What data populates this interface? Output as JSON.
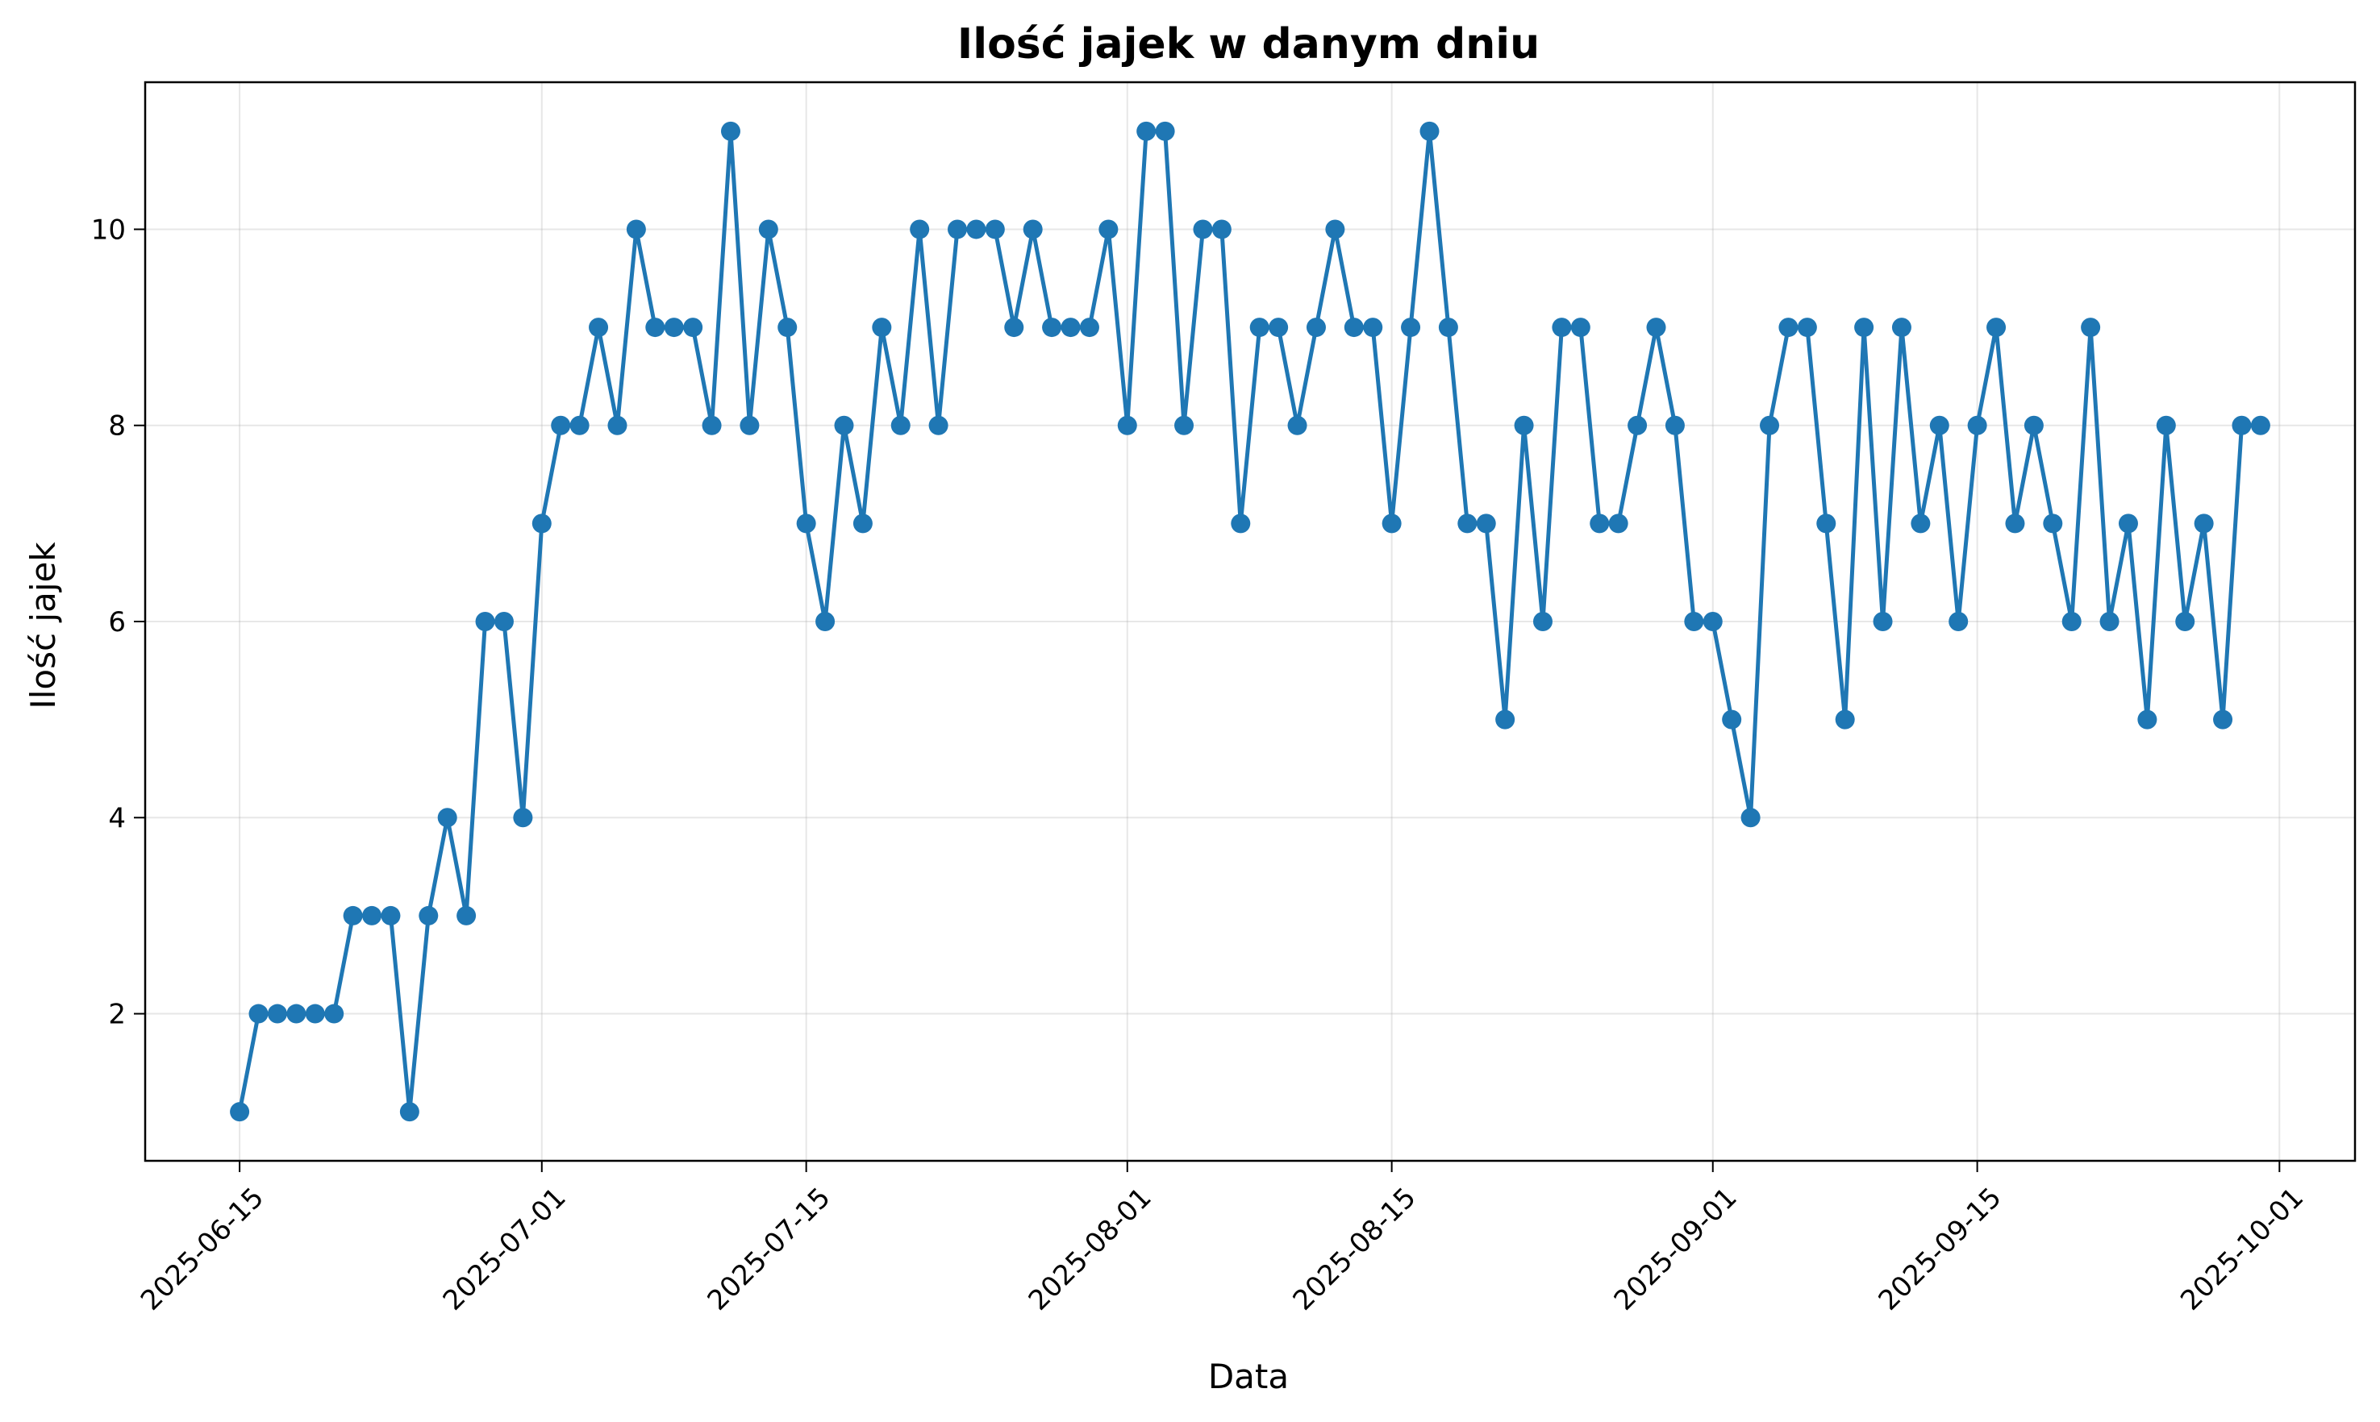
{
  "chart_data": {
    "type": "line",
    "title": "Ilość jajek w danym dniu",
    "xlabel": "Data",
    "ylabel": "Ilość jajek",
    "x_tick_labels": [
      "2025-06-15",
      "2025-07-01",
      "2025-07-15",
      "2025-08-01",
      "2025-08-15",
      "2025-09-01",
      "2025-09-15",
      "2025-10-01"
    ],
    "y_tick_labels": [
      "2",
      "4",
      "6",
      "8",
      "10"
    ],
    "xlim": [
      "2025-06-10",
      "2025-10-05"
    ],
    "ylim": [
      0.5,
      11.5
    ],
    "grid": true,
    "color": "#1f77b4",
    "series": [
      {
        "x": [
          "2025-06-15",
          "2025-06-16",
          "2025-06-17",
          "2025-06-18",
          "2025-06-19",
          "2025-06-20",
          "2025-06-21",
          "2025-06-22",
          "2025-06-23",
          "2025-06-24",
          "2025-06-25",
          "2025-06-26",
          "2025-06-27",
          "2025-06-28",
          "2025-06-29",
          "2025-06-30",
          "2025-07-01",
          "2025-07-02",
          "2025-07-03",
          "2025-07-04",
          "2025-07-05",
          "2025-07-06",
          "2025-07-07",
          "2025-07-08",
          "2025-07-09",
          "2025-07-10",
          "2025-07-11",
          "2025-07-12",
          "2025-07-13",
          "2025-07-14",
          "2025-07-15",
          "2025-07-16",
          "2025-07-17",
          "2025-07-18",
          "2025-07-19",
          "2025-07-20",
          "2025-07-21",
          "2025-07-22",
          "2025-07-23",
          "2025-07-24",
          "2025-07-25",
          "2025-07-26",
          "2025-07-27",
          "2025-07-28",
          "2025-07-29",
          "2025-07-30",
          "2025-07-31",
          "2025-08-01",
          "2025-08-02",
          "2025-08-03",
          "2025-08-04",
          "2025-08-05",
          "2025-08-06",
          "2025-08-07",
          "2025-08-08",
          "2025-08-09",
          "2025-08-10",
          "2025-08-11",
          "2025-08-12",
          "2025-08-13",
          "2025-08-14",
          "2025-08-15",
          "2025-08-16",
          "2025-08-17",
          "2025-08-18",
          "2025-08-19",
          "2025-08-20",
          "2025-08-21",
          "2025-08-22",
          "2025-08-23",
          "2025-08-24",
          "2025-08-25",
          "2025-08-26",
          "2025-08-27",
          "2025-08-28",
          "2025-08-29",
          "2025-08-30",
          "2025-08-31",
          "2025-09-01",
          "2025-09-02",
          "2025-09-03",
          "2025-09-04",
          "2025-09-05",
          "2025-09-06",
          "2025-09-07",
          "2025-09-08",
          "2025-09-09",
          "2025-09-10",
          "2025-09-11",
          "2025-09-12",
          "2025-09-13",
          "2025-09-14",
          "2025-09-15",
          "2025-09-16",
          "2025-09-17",
          "2025-09-18",
          "2025-09-19",
          "2025-09-20",
          "2025-09-21",
          "2025-09-22",
          "2025-09-23",
          "2025-09-24",
          "2025-09-25",
          "2025-09-26",
          "2025-09-27",
          "2025-09-28",
          "2025-09-29",
          "2025-09-30"
        ],
        "values": [
          1,
          2,
          2,
          2,
          2,
          2,
          3,
          3,
          3,
          1,
          3,
          4,
          3,
          6,
          6,
          4,
          7,
          8,
          8,
          9,
          8,
          10,
          9,
          9,
          9,
          8,
          11,
          8,
          10,
          9,
          7,
          6,
          8,
          7,
          9,
          8,
          10,
          8,
          10,
          10,
          10,
          9,
          10,
          9,
          9,
          9,
          10,
          8,
          11,
          11,
          8,
          10,
          10,
          7,
          9,
          9,
          8,
          9,
          10,
          9,
          9,
          7,
          9,
          11,
          9,
          7,
          7,
          5,
          8,
          6,
          9,
          9,
          7,
          7,
          8,
          9,
          8,
          6,
          6,
          5,
          4,
          8,
          9,
          9,
          7,
          5,
          9,
          6,
          9,
          7,
          8,
          6,
          8,
          9,
          7,
          8,
          7,
          6,
          9,
          6,
          7,
          5,
          8,
          6,
          7,
          5,
          8,
          8
        ]
      }
    ]
  }
}
